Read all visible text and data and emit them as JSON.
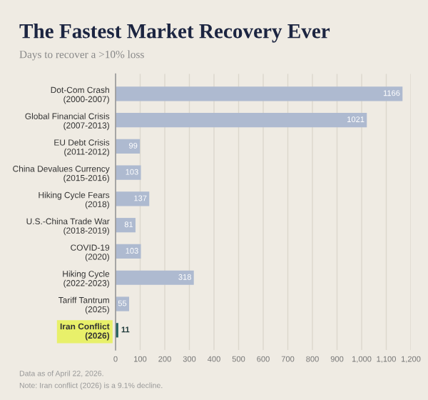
{
  "chart_data": {
    "type": "bar",
    "orientation": "horizontal",
    "title": "The Fastest Market Recovery Ever",
    "subtitle": "Days to recover a >10% loss",
    "categories": [
      "Dot-Com Crash\n(2000-2007)",
      "Global Financial Crisis\n(2007-2013)",
      "EU Debt Crisis\n(2011-2012)",
      "China Devalues Currency\n(2015-2016)",
      "Hiking Cycle Fears\n(2018)",
      "U.S.-China Trade War\n(2018-2019)",
      "COVID-19\n(2020)",
      "Hiking Cycle\n(2022-2023)",
      "Tariff Tantrum\n(2025)",
      "Iran Conflict\n(2026)"
    ],
    "values": [
      1166,
      1021,
      99,
      103,
      137,
      81,
      103,
      318,
      55,
      11
    ],
    "colors": [
      "#aebad0",
      "#aebad0",
      "#aebad0",
      "#aebad0",
      "#aebad0",
      "#aebad0",
      "#aebad0",
      "#aebad0",
      "#aebad0",
      "#1f5f5b"
    ],
    "xlim": [
      0,
      1200
    ],
    "xticks": [
      0,
      100,
      200,
      300,
      400,
      500,
      600,
      700,
      800,
      900,
      {
        "value": 1000,
        "label": "1,000"
      },
      {
        "value": 1100,
        "label": "1,100"
      },
      {
        "value": 1200,
        "label": "1,200"
      }
    ],
    "grid": "x",
    "data_labels": true,
    "annotations": [
      "Data as of April 22, 2026.",
      "Note: Iran conflict (2026) is a 9.1% decline."
    ]
  }
}
